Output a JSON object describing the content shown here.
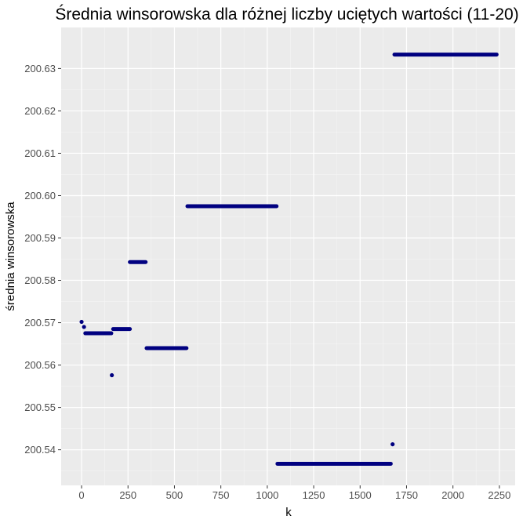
{
  "chart_data": {
    "type": "scatter",
    "title": "Średnia winsorowska dla różnej liczby uciętych wartości (11-20)",
    "xlabel": "k",
    "ylabel": "średnia winsorowska",
    "xlim": [
      -110,
      2335
    ],
    "ylim": [
      200.5316,
      200.6397
    ],
    "x_ticks": [
      0,
      250,
      500,
      750,
      1000,
      1250,
      1500,
      1750,
      2000,
      2250
    ],
    "x_tick_labels": [
      "0",
      "250",
      "500",
      "750",
      "1000",
      "1250",
      "1500",
      "1750",
      "2000",
      "2250"
    ],
    "y_ticks": [
      200.54,
      200.55,
      200.56,
      200.57,
      200.58,
      200.59,
      200.6,
      200.61,
      200.62,
      200.63
    ],
    "y_tick_labels": [
      "200.54",
      "200.55",
      "200.56",
      "200.57",
      "200.58",
      "200.59",
      "200.60",
      "200.61",
      "200.62",
      "200.63"
    ],
    "grid": true,
    "legend": "none",
    "point_color": "#000080",
    "panel_background": "#ebebeb",
    "segments": [
      {
        "x_start": 20,
        "x_end": 160,
        "y": 200.5675
      },
      {
        "x_start": 170,
        "x_end": 260,
        "y": 200.5685
      },
      {
        "x_start": 260,
        "x_end": 345,
        "y": 200.5843
      },
      {
        "x_start": 350,
        "x_end": 565,
        "y": 200.564
      },
      {
        "x_start": 570,
        "x_end": 1050,
        "y": 200.5975
      },
      {
        "x_start": 1055,
        "x_end": 1665,
        "y": 200.5367
      },
      {
        "x_start": 1685,
        "x_end": 2235,
        "y": 200.6333
      }
    ],
    "isolated_points": [
      {
        "x": 0,
        "y": 200.5702
      },
      {
        "x": 13,
        "y": 200.569
      },
      {
        "x": 163,
        "y": 200.5576
      },
      {
        "x": 1675,
        "y": 200.5413
      }
    ]
  }
}
